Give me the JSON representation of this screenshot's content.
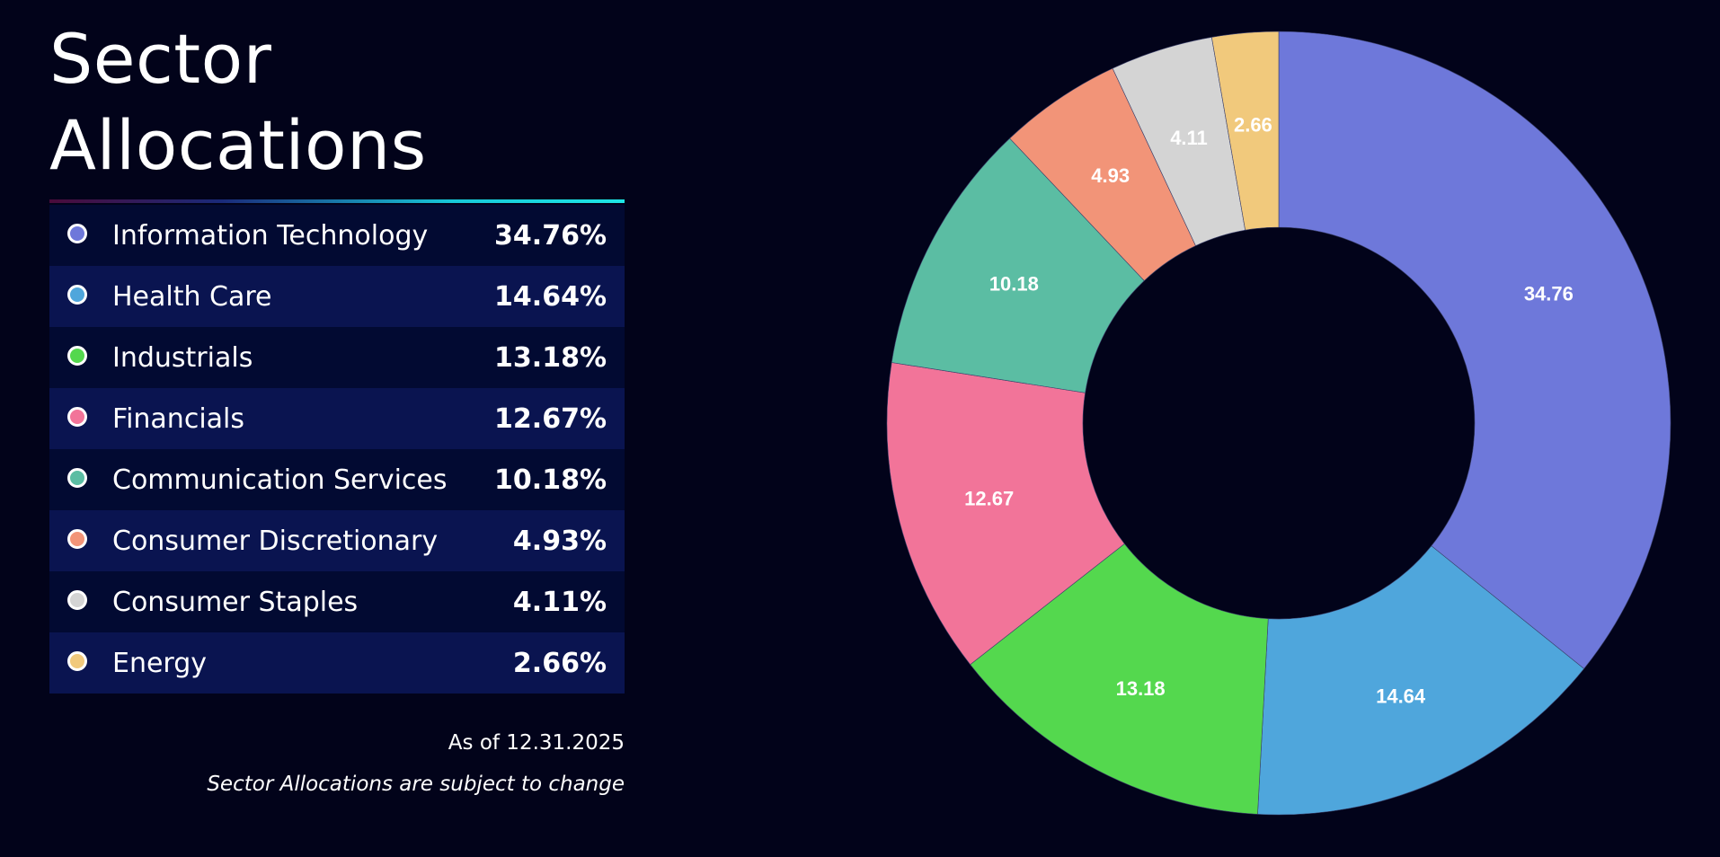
{
  "title": "Sector Allocations",
  "legend": [
    {
      "label": "Information Technology",
      "value": "34.76%"
    },
    {
      "label": "Health Care",
      "value": "14.64%"
    },
    {
      "label": "Industrials",
      "value": "13.18%"
    },
    {
      "label": "Financials",
      "value": "12.67%"
    },
    {
      "label": "Communication Services",
      "value": "10.18%"
    },
    {
      "label": "Consumer Discretionary",
      "value": "4.93%"
    },
    {
      "label": "Consumer Staples",
      "value": "4.11%"
    },
    {
      "label": "Energy",
      "value": "2.66%"
    }
  ],
  "as_of": "As of 12.31.2025",
  "disclaimer": "Sector Allocations are subject to change",
  "chart_data": {
    "type": "pie",
    "title": "Sector Allocations",
    "categories": [
      "Information Technology",
      "Health Care",
      "Industrials",
      "Financials",
      "Communication Services",
      "Consumer Discretionary",
      "Consumer Staples",
      "Energy"
    ],
    "values": [
      34.76,
      14.64,
      13.18,
      12.67,
      10.18,
      4.93,
      4.11,
      2.66
    ],
    "data_labels": [
      "34.76",
      "14.64",
      "13.18",
      "12.67",
      "10.18",
      "4.93",
      "4.11",
      "2.66"
    ],
    "colors": [
      "#6e78da",
      "#4fa6dc",
      "#54d84e",
      "#f27499",
      "#5bbda3",
      "#f29478",
      "#d4d4d4",
      "#f1c97c"
    ],
    "donut": true,
    "legend": "left"
  }
}
